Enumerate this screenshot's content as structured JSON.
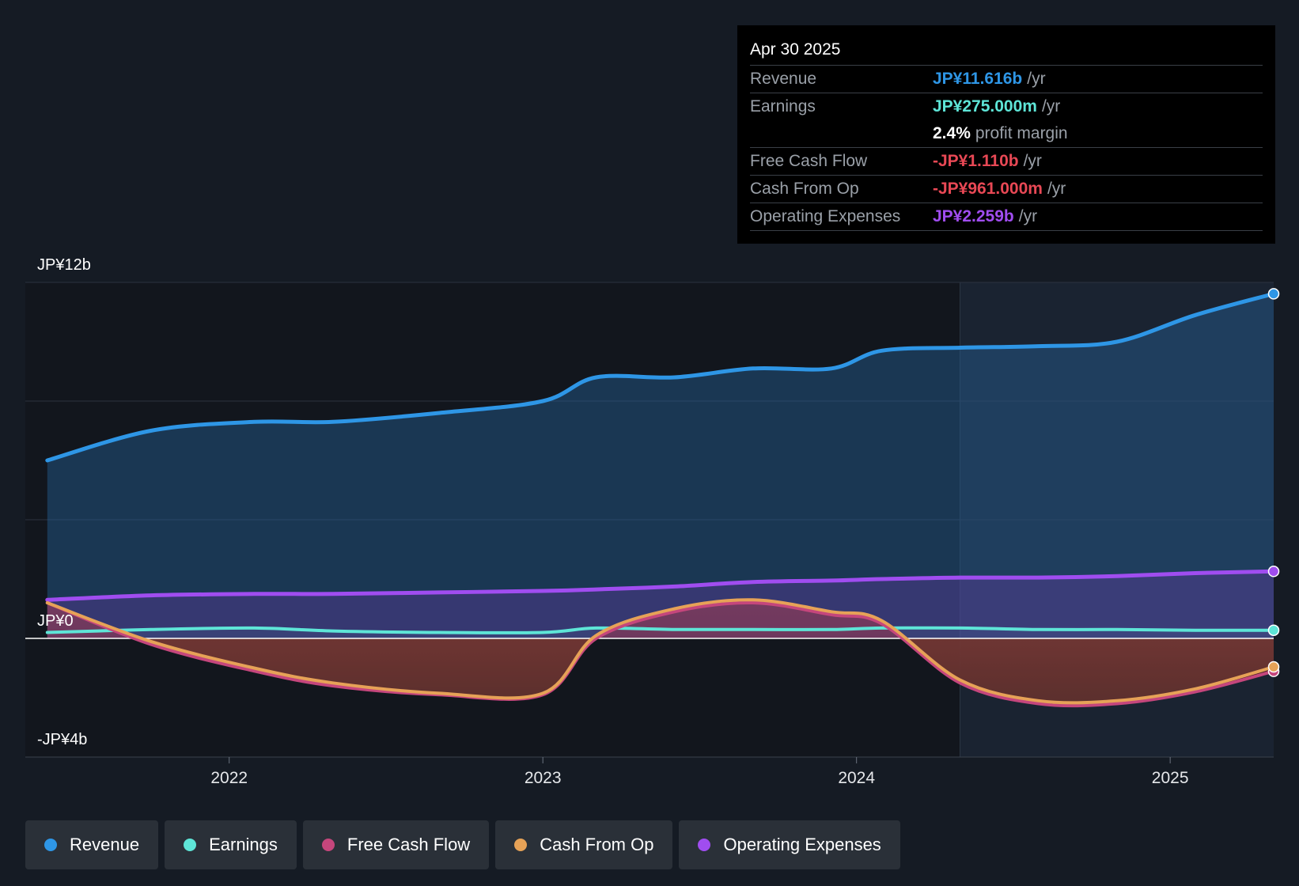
{
  "chart_data": {
    "type": "area",
    "y_ticks": [
      {
        "value": 12,
        "label": "JP¥12b"
      },
      {
        "value": 0,
        "label": "JP¥0"
      },
      {
        "value": -4,
        "label": "-JP¥4b"
      }
    ],
    "ylim": [
      -4,
      12
    ],
    "xlim": [
      2021.35,
      2025.33
    ],
    "x_ticks": [
      {
        "value": 2022.0,
        "label": "2022"
      },
      {
        "value": 2023.0,
        "label": "2023"
      },
      {
        "value": 2024.0,
        "label": "2024"
      },
      {
        "value": 2025.0,
        "label": "2025"
      }
    ],
    "past_data_start": 2024.33,
    "x": [
      2021.42,
      2021.75,
      2022.08,
      2022.33,
      2022.67,
      2023.0,
      2023.17,
      2023.42,
      2023.67,
      2023.92,
      2024.08,
      2024.33,
      2024.58,
      2024.83,
      2025.08,
      2025.33
    ],
    "series": [
      {
        "name": "Revenue",
        "color": "#2e96e6",
        "values": [
          6.0,
          7.0,
          7.3,
          7.3,
          7.6,
          8.0,
          8.8,
          8.8,
          9.1,
          9.1,
          9.7,
          9.8,
          9.85,
          10.0,
          10.9,
          11.616
        ]
      },
      {
        "name": "Earnings",
        "color": "#5ee5d7",
        "values": [
          0.2,
          0.3,
          0.35,
          0.25,
          0.2,
          0.2,
          0.35,
          0.3,
          0.3,
          0.3,
          0.35,
          0.35,
          0.3,
          0.3,
          0.275,
          0.275
        ]
      },
      {
        "name": "Free Cash Flow",
        "color": "#c5467c",
        "values": [
          1.2,
          -0.2,
          -1.1,
          -1.6,
          -1.9,
          -1.9,
          0.0,
          0.9,
          1.2,
          0.8,
          0.5,
          -1.5,
          -2.2,
          -2.2,
          -1.8,
          -1.11
        ]
      },
      {
        "name": "Cash From Op",
        "color": "#e6a257",
        "values": [
          1.2,
          -0.1,
          -1.0,
          -1.5,
          -1.85,
          -1.85,
          0.1,
          1.0,
          1.3,
          0.9,
          0.6,
          -1.4,
          -2.1,
          -2.1,
          -1.7,
          -0.961
        ]
      },
      {
        "name": "Operating Expenses",
        "color": "#a04df0",
        "values": [
          1.3,
          1.45,
          1.5,
          1.5,
          1.55,
          1.6,
          1.65,
          1.75,
          1.9,
          1.95,
          2.0,
          2.05,
          2.05,
          2.1,
          2.2,
          2.259
        ]
      }
    ]
  },
  "tooltip": {
    "date": "Apr 30 2025",
    "rows": [
      {
        "label": "Revenue",
        "value": "JP¥11.616b",
        "unit": "/yr",
        "color": "#2e96e6"
      },
      {
        "label": "Earnings",
        "value": "JP¥275.000m",
        "unit": "/yr",
        "color": "#5ee5d7"
      },
      {
        "label": "",
        "value": "2.4%",
        "unit": "profit margin",
        "color": "#ffffff"
      },
      {
        "label": "Free Cash Flow",
        "value": "-JP¥1.110b",
        "unit": "/yr",
        "color": "#e84855"
      },
      {
        "label": "Cash From Op",
        "value": "-JP¥961.000m",
        "unit": "/yr",
        "color": "#e84855"
      },
      {
        "label": "Operating Expenses",
        "value": "JP¥2.259b",
        "unit": "/yr",
        "color": "#a04df0"
      }
    ]
  },
  "legend": [
    {
      "label": "Revenue",
      "color": "#2e96e6"
    },
    {
      "label": "Earnings",
      "color": "#5ee5d7"
    },
    {
      "label": "Free Cash Flow",
      "color": "#c5467c"
    },
    {
      "label": "Cash From Op",
      "color": "#e6a257"
    },
    {
      "label": "Operating Expenses",
      "color": "#a04df0"
    }
  ]
}
